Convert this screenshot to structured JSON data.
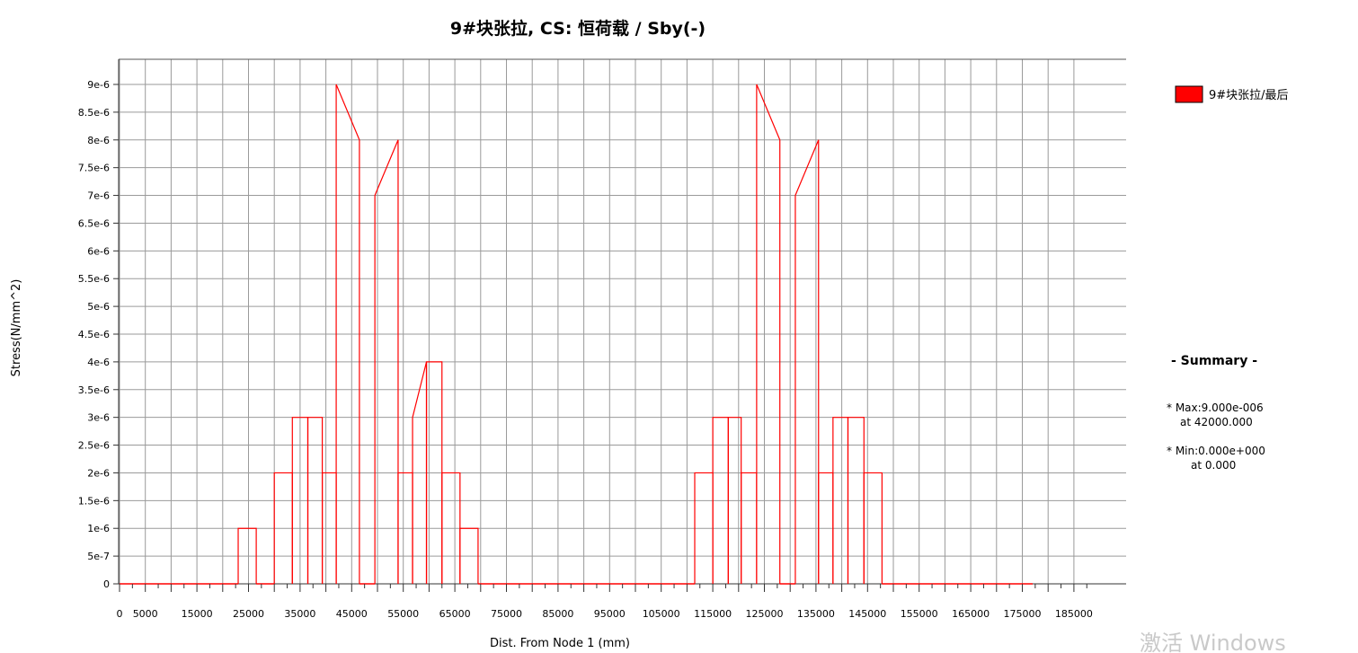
{
  "chart_data": {
    "type": "line",
    "title": "9#块张拉, CS: 恒荷载 / Sby(-)",
    "xlabel": "Dist. From Node 1 (mm)",
    "ylabel": "Stress(N/mm^2)",
    "xlim": [
      0,
      188000
    ],
    "ylim": [
      0,
      9.5e-06
    ],
    "xticks": [
      0,
      5000,
      15000,
      25000,
      35000,
      45000,
      55000,
      65000,
      75000,
      85000,
      95000,
      105000,
      115000,
      125000,
      135000,
      145000,
      155000,
      165000,
      175000,
      185000
    ],
    "xtick_labels": [
      "0",
      "5000",
      "15000",
      "25000",
      "35000",
      "45000",
      "55000",
      "65000",
      "75000",
      "85000",
      "95000",
      "105000",
      "115000",
      "125000",
      "135000",
      "145000",
      "155000",
      "165000",
      "175000",
      "185000"
    ],
    "yticks": [
      0,
      5e-07,
      1e-06,
      1.5e-06,
      2e-06,
      2.5e-06,
      3e-06,
      3.5e-06,
      4e-06,
      4.5e-06,
      5e-06,
      5.5e-06,
      6e-06,
      6.5e-06,
      7e-06,
      7.5e-06,
      8e-06,
      8.5e-06,
      9e-06
    ],
    "ytick_labels": [
      "0",
      "5e-7",
      "1e-6",
      "1.5e-6",
      "2e-6",
      "2.5e-6",
      "3e-6",
      "3.5e-6",
      "4e-6",
      "4.5e-6",
      "5e-6",
      "5.5e-6",
      "6e-6",
      "6.5e-6",
      "7e-6",
      "7.5e-6",
      "8e-6",
      "8.5e-6",
      "9e-6"
    ],
    "grid": true,
    "legend_position": "top-right",
    "series": [
      {
        "name": "9#块张拉/最后",
        "color": "#ff0000",
        "segments": [
          [
            0,
            23000,
            0,
            0
          ],
          [
            23000,
            26500,
            1e-06,
            1e-06
          ],
          [
            26500,
            30000,
            0,
            0
          ],
          [
            30000,
            33500,
            2e-06,
            2e-06
          ],
          [
            33500,
            36500,
            3e-06,
            3e-06
          ],
          [
            36500,
            39300,
            3e-06,
            3e-06
          ],
          [
            39300,
            42000,
            2e-06,
            2e-06
          ],
          [
            42000,
            46500,
            9e-06,
            8e-06
          ],
          [
            46500,
            49500,
            0,
            0
          ],
          [
            49500,
            54000,
            7e-06,
            8e-06
          ],
          [
            54000,
            56800,
            2e-06,
            2e-06
          ],
          [
            56800,
            59500,
            3e-06,
            4e-06
          ],
          [
            59500,
            62500,
            4e-06,
            4e-06
          ],
          [
            62500,
            66000,
            2e-06,
            2e-06
          ],
          [
            66000,
            69500,
            1e-06,
            1e-06
          ],
          [
            69500,
            111500,
            0,
            0
          ],
          [
            111500,
            115000,
            2e-06,
            2e-06
          ],
          [
            115000,
            118000,
            3e-06,
            3e-06
          ],
          [
            118000,
            120500,
            3e-06,
            3e-06
          ],
          [
            120500,
            123500,
            2e-06,
            2e-06
          ],
          [
            123500,
            128000,
            9e-06,
            8e-06
          ],
          [
            128000,
            131000,
            0,
            0
          ],
          [
            131000,
            135500,
            7e-06,
            8e-06
          ],
          [
            135500,
            138300,
            2e-06,
            2e-06
          ],
          [
            138300,
            141200,
            3e-06,
            3e-06
          ],
          [
            141200,
            144300,
            3e-06,
            3e-06
          ],
          [
            144300,
            147800,
            2e-06,
            2e-06
          ],
          [
            147800,
            177000,
            0,
            0
          ]
        ]
      }
    ],
    "summary": {
      "title": "- Summary -",
      "max_label": "* Max:9.000e-006",
      "max_at": "at 42000.000",
      "min_label": "* Min:0.000e+000",
      "min_at": "at  0.000"
    }
  },
  "watermark": "激活 Windows"
}
